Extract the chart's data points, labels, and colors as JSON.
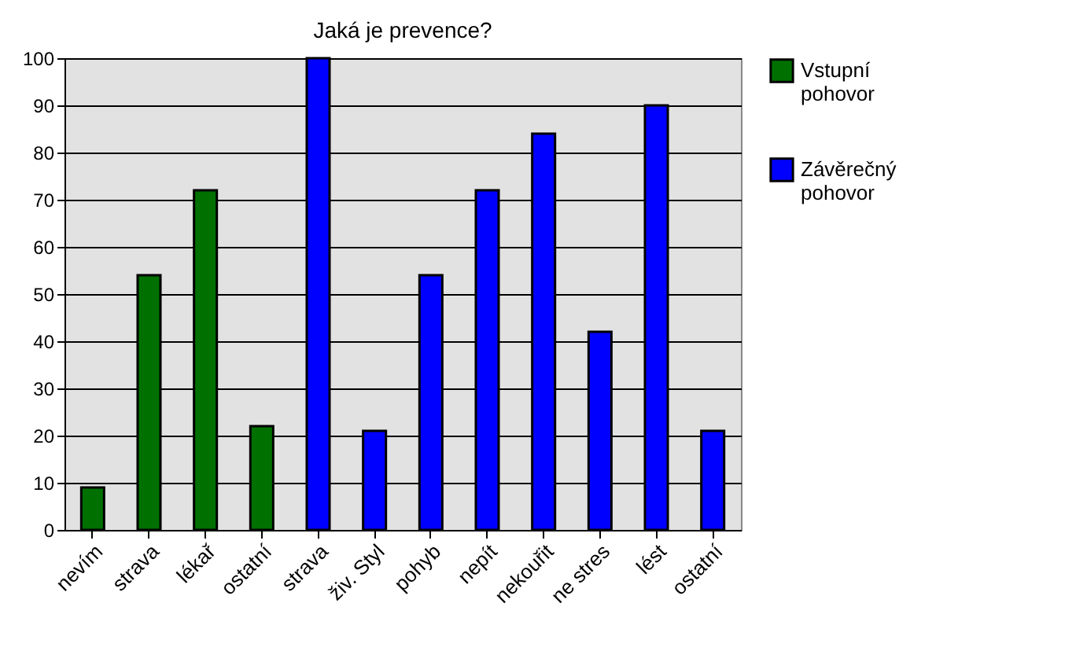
{
  "chart_data": {
    "type": "bar",
    "title": "Jaká je prevence?",
    "categories": [
      "nevím",
      "strava",
      "lékař",
      "ostatní",
      "strava",
      "živ. Styl",
      "pohyb",
      "nepít",
      "nekouřit",
      "ne stres",
      "lést",
      "ostatní"
    ],
    "series": [
      {
        "name": "Vstupní pohovor",
        "color": "#007000",
        "values": [
          9,
          54,
          72,
          22,
          null,
          null,
          null,
          null,
          null,
          null,
          null,
          null
        ]
      },
      {
        "name": "Závěrečný pohovor",
        "color": "#0000ff",
        "values": [
          null,
          null,
          null,
          null,
          100,
          21,
          54,
          72,
          84,
          42,
          90,
          21
        ]
      }
    ],
    "ylim": [
      0,
      100
    ],
    "yticks": [
      0,
      10,
      20,
      30,
      40,
      50,
      60,
      70,
      80,
      90,
      100
    ],
    "grid": "y",
    "legend": "right"
  }
}
